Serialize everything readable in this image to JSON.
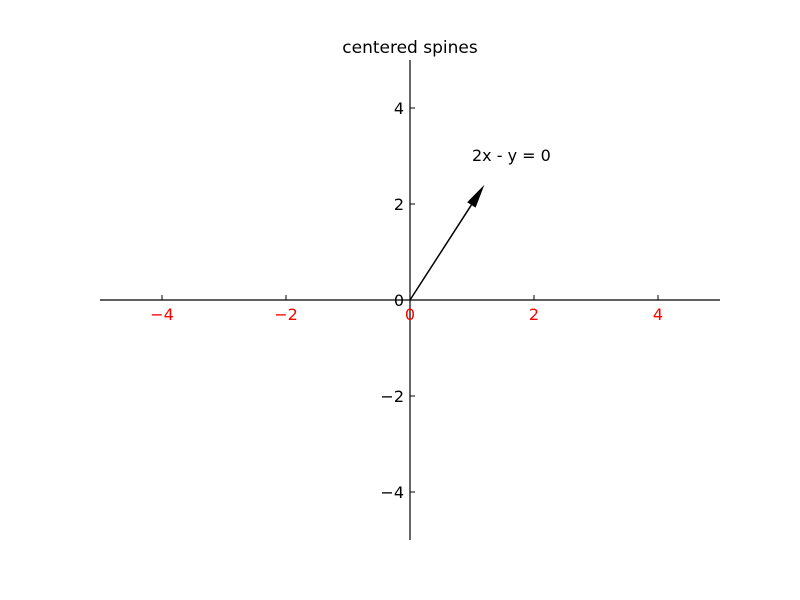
{
  "chart_data": {
    "type": "line",
    "title": "centered spines",
    "xlabel": "",
    "ylabel": "",
    "xlim": [
      -5,
      5
    ],
    "ylim": [
      -5,
      5
    ],
    "x_ticks": [
      -4,
      -2,
      0,
      2,
      4
    ],
    "x_tick_labels": [
      "−4",
      "−2",
      "0",
      "2",
      "4"
    ],
    "y_ticks": [
      -4,
      -2,
      0,
      2,
      4
    ],
    "y_tick_labels": [
      "−4",
      "−2",
      "0",
      "2",
      "4"
    ],
    "spines": "centered",
    "grid": false,
    "legend": "none",
    "arrow": {
      "from": [
        0,
        0
      ],
      "to": [
        1.2,
        2.4
      ]
    },
    "annotation": {
      "text": "2x - y = 0",
      "x": 1,
      "y": 3
    },
    "colors": {
      "x_tick_labels": "#ff0000",
      "y_tick_labels": "#000000",
      "axes": "#000000",
      "arrow": "#000000"
    }
  }
}
